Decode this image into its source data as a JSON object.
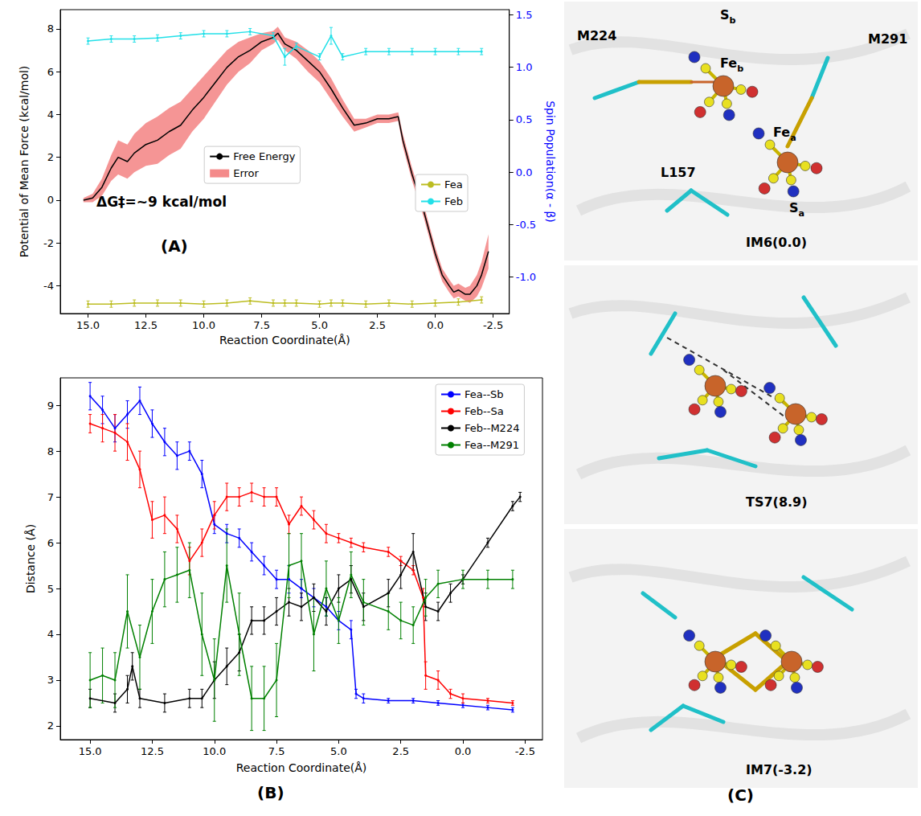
{
  "chart_data": [
    {
      "type": "line",
      "xlabel": "Reaction Coordinate(Å)",
      "ylabel": "Potential of Mean Force (kcal/mol)",
      "y2label": "Spin Population(α - β)",
      "annotations": [
        "ΔG‡=~9 kcal/mol",
        "(A)"
      ],
      "xlim": [
        16.2,
        -3.2
      ],
      "xticks": [
        {
          "value": 15,
          "label": "15.0"
        },
        12.5,
        {
          "value": 10,
          "label": "10.0"
        },
        7.5,
        {
          "value": 5,
          "label": "5.0"
        },
        2.5,
        {
          "value": 0,
          "label": "0.0"
        },
        -2.5
      ],
      "ylim": [
        -5.3,
        8.9
      ],
      "yticks": [
        -4,
        -2,
        0,
        2,
        4,
        6,
        8
      ],
      "y2lim": [
        -1.35,
        1.55
      ],
      "y2ticks": [
        {
          "value": -1,
          "label": "-1.0"
        },
        -0.5,
        {
          "value": 0,
          "label": "0.0"
        },
        0.5,
        {
          "value": 1,
          "label": "1.0"
        },
        1.5
      ],
      "grid": false,
      "legend": "center",
      "series": [
        {
          "name": "Free Energy",
          "color": "#000000",
          "line_style": "solid",
          "marker": "none",
          "x": [
            15.2,
            14.8,
            14.4,
            14.0,
            13.7,
            13.3,
            13.0,
            12.5,
            12.0,
            11.5,
            11.0,
            10.5,
            10.0,
            9.5,
            9.0,
            8.5,
            8.0,
            7.5,
            7.0,
            6.8,
            6.5,
            6.0,
            5.5,
            5.0,
            4.5,
            4.0,
            3.5,
            3.0,
            2.5,
            2.0,
            1.6,
            1.4,
            1.0,
            0.5,
            0.0,
            -0.3,
            -0.6,
            -0.8,
            -1.0,
            -1.3,
            -1.5,
            -1.8,
            -2.0,
            -2.3
          ],
          "values": [
            0.0,
            0.1,
            0.6,
            1.5,
            2.0,
            1.8,
            2.2,
            2.6,
            2.8,
            3.2,
            3.5,
            4.2,
            4.8,
            5.5,
            6.2,
            6.7,
            7.0,
            7.4,
            7.6,
            7.8,
            7.3,
            7.0,
            6.5,
            6.0,
            5.2,
            4.3,
            3.5,
            3.6,
            3.8,
            3.8,
            3.9,
            2.8,
            1.2,
            -0.5,
            -2.5,
            -3.5,
            -4.0,
            -4.3,
            -4.2,
            -4.4,
            -4.4,
            -4.0,
            -3.5,
            -2.4
          ],
          "error_band": {
            "name": "Error",
            "color": "#f48a8a",
            "values": [
              0.1,
              0.2,
              0.4,
              0.6,
              0.8,
              0.8,
              0.9,
              1.0,
              1.1,
              1.1,
              1.1,
              1.0,
              1.0,
              0.9,
              0.8,
              0.7,
              0.6,
              0.4,
              0.3,
              0.3,
              0.3,
              0.4,
              0.5,
              0.5,
              0.5,
              0.4,
              0.3,
              0.2,
              0.2,
              0.2,
              0.2,
              0.3,
              0.3,
              0.3,
              0.3,
              0.3,
              0.3,
              0.3,
              0.3,
              0.3,
              0.4,
              0.5,
              0.6,
              0.8
            ]
          }
        },
        {
          "name": "Fea",
          "color": "#bcbd22",
          "axis": "y2",
          "line_style": "solid",
          "marker": "plus",
          "x": [
            15,
            14,
            13,
            12,
            11,
            10,
            9,
            8,
            7,
            6.5,
            6,
            5,
            4.5,
            4,
            3,
            2,
            1,
            0,
            -1,
            -2
          ],
          "values": [
            -1.26,
            -1.26,
            -1.25,
            -1.25,
            -1.25,
            -1.26,
            -1.25,
            -1.23,
            -1.25,
            -1.25,
            -1.25,
            -1.26,
            -1.25,
            -1.25,
            -1.26,
            -1.25,
            -1.26,
            -1.25,
            -1.24,
            -1.22
          ],
          "errors": [
            0.03,
            0.03,
            0.03,
            0.03,
            0.03,
            0.03,
            0.03,
            0.03,
            0.03,
            0.03,
            0.03,
            0.03,
            0.03,
            0.03,
            0.03,
            0.03,
            0.03,
            0.03,
            0.03,
            0.03
          ]
        },
        {
          "name": "Feb",
          "color": "#22e0e8",
          "axis": "y2",
          "line_style": "solid",
          "marker": "plus",
          "x": [
            15,
            14,
            13,
            12,
            11,
            10,
            9,
            8,
            7,
            6.5,
            6,
            5,
            4.5,
            4,
            3,
            2,
            1,
            0,
            -1,
            -2
          ],
          "values": [
            1.25,
            1.27,
            1.27,
            1.28,
            1.3,
            1.32,
            1.32,
            1.34,
            1.3,
            1.1,
            1.2,
            1.1,
            1.3,
            1.1,
            1.15,
            1.15,
            1.15,
            1.15,
            1.15,
            1.15
          ],
          "errors": [
            0.03,
            0.03,
            0.03,
            0.03,
            0.03,
            0.03,
            0.03,
            0.03,
            0.03,
            0.08,
            0.03,
            0.03,
            0.08,
            0.03,
            0.03,
            0.03,
            0.03,
            0.03,
            0.03,
            0.03
          ]
        }
      ]
    },
    {
      "type": "line",
      "xlabel": "Reaction Coordinate(Å)",
      "ylabel": "Distance (Å)",
      "annotations": [
        "(B)"
      ],
      "xlim": [
        16.2,
        -3.2
      ],
      "xticks": [
        {
          "value": 15,
          "label": "15.0"
        },
        12.5,
        {
          "value": 10,
          "label": "10.0"
        },
        7.5,
        {
          "value": 5,
          "label": "5.0"
        },
        2.5,
        {
          "value": 0,
          "label": "0.0"
        },
        -2.5
      ],
      "ylim": [
        1.7,
        9.6
      ],
      "yticks": [
        2,
        3,
        4,
        5,
        6,
        7,
        8,
        9
      ],
      "grid": false,
      "legend": "upper right",
      "series": [
        {
          "name": "Fea--Sb",
          "color": "#0000ff",
          "line_style": "solid",
          "marker": "plus",
          "x": [
            15,
            14.5,
            14,
            13.5,
            13,
            12.5,
            12,
            11.5,
            11,
            10.5,
            10,
            9.5,
            9,
            8.5,
            8,
            7.5,
            7,
            6.5,
            6,
            5.5,
            5,
            4.5,
            4.3,
            4,
            3,
            2,
            1,
            0,
            -1,
            -2
          ],
          "values": [
            9.2,
            8.9,
            8.5,
            8.8,
            9.1,
            8.6,
            8.2,
            7.9,
            8.0,
            7.5,
            6.4,
            6.2,
            6.1,
            5.8,
            5.5,
            5.2,
            5.2,
            5.0,
            4.8,
            4.6,
            4.3,
            4.1,
            2.7,
            2.6,
            2.55,
            2.55,
            2.5,
            2.45,
            2.4,
            2.35
          ],
          "errors": [
            0.3,
            0.3,
            0.3,
            0.3,
            0.3,
            0.3,
            0.3,
            0.3,
            0.2,
            0.3,
            0.2,
            0.2,
            0.2,
            0.2,
            0.2,
            0.2,
            0.3,
            0.2,
            0.2,
            0.2,
            0.2,
            0.2,
            0.1,
            0.1,
            0.05,
            0.05,
            0.05,
            0.05,
            0.05,
            0.05
          ]
        },
        {
          "name": "Feb--Sa",
          "color": "#ff0000",
          "line_style": "solid",
          "marker": "plus",
          "x": [
            15,
            14.5,
            14,
            13.5,
            13,
            12.5,
            12,
            11.5,
            11,
            10.5,
            10,
            9.5,
            9,
            8.5,
            8,
            7.5,
            7,
            6.5,
            6,
            5.5,
            5,
            4.5,
            4,
            3,
            2.5,
            2,
            1.6,
            1.5,
            1,
            0.5,
            0,
            -1,
            -2
          ],
          "values": [
            8.6,
            8.5,
            8.4,
            8.2,
            7.6,
            6.5,
            6.6,
            6.3,
            5.6,
            6.0,
            6.6,
            7.0,
            7.0,
            7.1,
            7.0,
            7.0,
            6.4,
            6.8,
            6.5,
            6.2,
            6.1,
            6.0,
            5.9,
            5.8,
            5.6,
            5.4,
            4.8,
            3.1,
            3.0,
            2.7,
            2.6,
            2.55,
            2.5
          ],
          "errors": [
            0.2,
            0.3,
            0.4,
            0.4,
            0.4,
            0.4,
            0.4,
            0.3,
            0.3,
            0.3,
            0.3,
            0.3,
            0.2,
            0.2,
            0.2,
            0.2,
            0.2,
            0.2,
            0.2,
            0.2,
            0.1,
            0.1,
            0.1,
            0.1,
            0.1,
            0.1,
            0.2,
            0.3,
            0.2,
            0.1,
            0.1,
            0.05,
            0.05
          ]
        },
        {
          "name": "Feb--M224",
          "color": "#000000",
          "line_style": "solid",
          "marker": "plus",
          "x": [
            15,
            14,
            13.5,
            13.3,
            13,
            12,
            11,
            10.5,
            10,
            9.5,
            9,
            8.5,
            8,
            7.5,
            7,
            6.5,
            6,
            5.5,
            5,
            4.5,
            4,
            3,
            2.5,
            2,
            1.5,
            1,
            0.5,
            0,
            -1,
            -2,
            -2.3
          ],
          "values": [
            2.6,
            2.5,
            2.8,
            3.3,
            2.6,
            2.5,
            2.6,
            2.6,
            3.0,
            3.3,
            3.6,
            4.3,
            4.3,
            4.5,
            4.7,
            4.6,
            4.8,
            4.5,
            5.0,
            5.2,
            4.6,
            4.9,
            5.3,
            5.8,
            4.6,
            4.5,
            4.9,
            5.2,
            6.0,
            6.8,
            7.0
          ],
          "errors": [
            0.2,
            0.2,
            0.3,
            0.3,
            0.2,
            0.2,
            0.2,
            0.2,
            0.4,
            0.4,
            0.4,
            0.3,
            0.3,
            0.3,
            0.3,
            0.3,
            0.3,
            0.3,
            0.3,
            0.3,
            0.3,
            0.3,
            0.3,
            0.4,
            0.3,
            0.2,
            0.2,
            0.1,
            0.1,
            0.1,
            0.1
          ]
        },
        {
          "name": "Fea--M291",
          "color": "#008000",
          "line_style": "solid",
          "marker": "plus",
          "x": [
            15,
            14.5,
            14,
            13.5,
            13,
            12.5,
            12,
            11.5,
            11,
            10.5,
            10,
            9.5,
            9,
            8.5,
            8,
            7.5,
            7,
            6.5,
            6,
            5.5,
            5,
            4.5,
            4,
            3,
            2.5,
            2,
            1.5,
            1,
            0,
            -1,
            -2
          ],
          "values": [
            3.0,
            3.1,
            3.0,
            4.5,
            3.5,
            4.5,
            5.2,
            5.3,
            5.4,
            4.0,
            3.0,
            5.5,
            4.0,
            2.6,
            2.6,
            3.0,
            5.5,
            5.6,
            4.0,
            5.0,
            4.3,
            5.3,
            4.7,
            4.5,
            4.3,
            4.2,
            4.8,
            5.1,
            5.2,
            5.2,
            5.2
          ],
          "errors": [
            0.6,
            0.6,
            0.6,
            0.8,
            0.7,
            0.7,
            0.6,
            0.6,
            0.6,
            0.9,
            0.9,
            0.8,
            0.9,
            0.7,
            0.7,
            0.8,
            0.7,
            0.6,
            0.8,
            0.6,
            0.5,
            0.5,
            0.5,
            0.4,
            0.4,
            0.4,
            0.4,
            0.3,
            0.2,
            0.2,
            0.2
          ]
        }
      ]
    }
  ],
  "panel_c": {
    "label": "(C)",
    "structures": [
      {
        "title": "IM6(0.0)",
        "labels": [
          "M224",
          "Sb",
          "Feb",
          "M291",
          "Fea",
          "L157",
          "Sa"
        ]
      },
      {
        "title": "TS7(8.9)",
        "labels": []
      },
      {
        "title": "IM7(-3.2)",
        "labels": []
      }
    ]
  }
}
